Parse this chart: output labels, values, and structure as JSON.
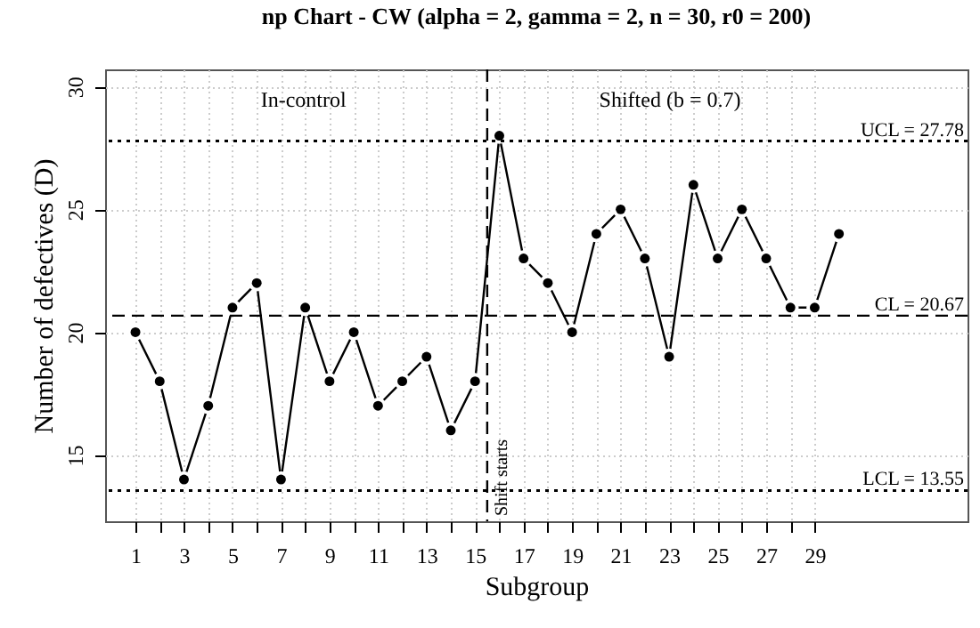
{
  "chart_data": {
    "type": "line",
    "title": "np Chart - CW (alpha = 2, gamma = 2, n = 30, r0 = 200)",
    "xlabel": "Subgroup",
    "ylabel": "Number of defectives (D)",
    "x": [
      1,
      2,
      3,
      4,
      5,
      6,
      7,
      8,
      9,
      10,
      11,
      12,
      13,
      14,
      15,
      16,
      17,
      18,
      19,
      20,
      21,
      22,
      23,
      24,
      25,
      26,
      27,
      28,
      29,
      30
    ],
    "values": [
      20,
      18,
      14,
      17,
      21,
      22,
      14,
      21,
      18,
      20,
      17,
      18,
      19,
      16,
      18,
      28,
      23,
      22,
      20,
      24,
      25,
      23,
      19,
      26,
      23,
      25,
      23,
      21,
      21,
      24
    ],
    "color": "#000000",
    "marker": "circle",
    "line_style": "solid",
    "grid": true,
    "xlim": [
      -0.25,
      35.3
    ],
    "ylim": [
      12.3,
      30.7
    ],
    "xticks": [
      1,
      {
        "value": 2,
        "label": null
      },
      3,
      {
        "value": 4,
        "label": null
      },
      5,
      {
        "value": 6,
        "label": null
      },
      7,
      {
        "value": 8,
        "label": null
      },
      9,
      {
        "value": 10,
        "label": null
      },
      11,
      {
        "value": 12,
        "label": null
      },
      13,
      {
        "value": 14,
        "label": null
      },
      15,
      {
        "value": 16,
        "label": null
      },
      17,
      {
        "value": 18,
        "label": null
      },
      19,
      {
        "value": 20,
        "label": null
      },
      21,
      {
        "value": 22,
        "label": null
      },
      23,
      {
        "value": 24,
        "label": null
      },
      25,
      {
        "value": 26,
        "label": null
      },
      27,
      {
        "value": 28,
        "label": null
      },
      29
    ],
    "yticks": [
      15,
      20,
      25,
      30
    ],
    "ref_lines": [
      {
        "axis": "y",
        "value": 27.78,
        "label": "UCL = 27.78",
        "line_style": "dotted",
        "color": "#000000"
      },
      {
        "axis": "y",
        "value": 20.67,
        "label": "CL = 20.67",
        "line_style": "dashed",
        "color": "#000000"
      },
      {
        "axis": "y",
        "value": 13.55,
        "label": "LCL = 13.55",
        "line_style": "dotted",
        "color": "#000000"
      },
      {
        "axis": "x",
        "value": 15.5,
        "label": "Shift starts",
        "line_style": "dashed",
        "color": "#000000"
      }
    ],
    "annotations": [
      "In-control",
      "Shifted (b = 0.7)"
    ]
  }
}
